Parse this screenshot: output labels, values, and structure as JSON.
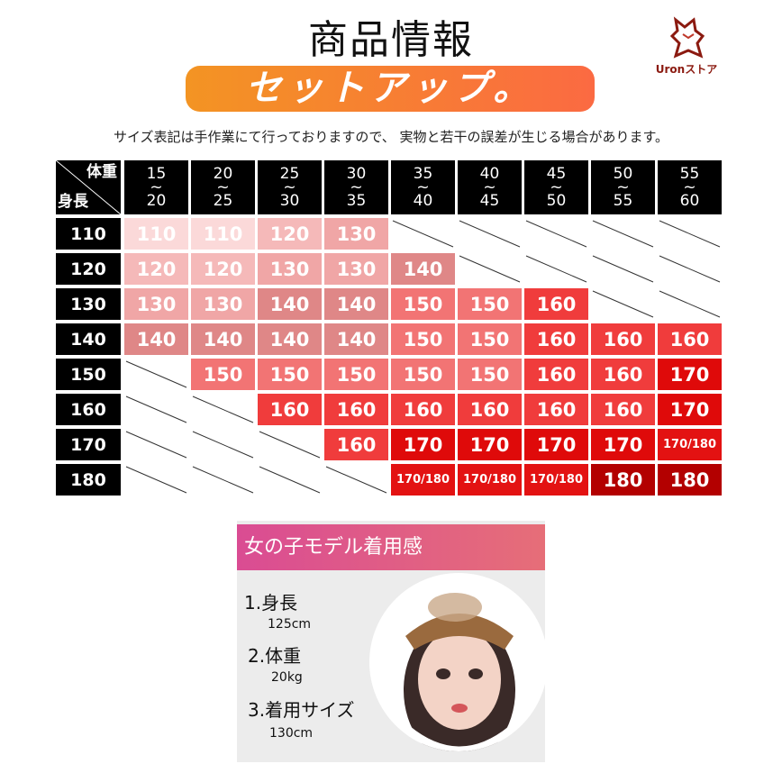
{
  "title": "商品情報",
  "banner": "セットアップ。",
  "logo_text": "Uronストア",
  "note": "サイズ表記は手作業にて行っておりますので、 実物と若干の誤差が生じる場合があります。",
  "table": {
    "corner_weight": "体重",
    "corner_height": "身長",
    "weight_cols": [
      [
        "15",
        "20"
      ],
      [
        "20",
        "25"
      ],
      [
        "25",
        "30"
      ],
      [
        "30",
        "35"
      ],
      [
        "35",
        "40"
      ],
      [
        "40",
        "45"
      ],
      [
        "45",
        "50"
      ],
      [
        "50",
        "55"
      ],
      [
        "55",
        "60"
      ]
    ],
    "range_sep": "~",
    "rows": [
      {
        "height": "110",
        "sizes": [
          "110",
          "110",
          "120",
          "130",
          null,
          null,
          null,
          null,
          null
        ]
      },
      {
        "height": "120",
        "sizes": [
          "120",
          "120",
          "130",
          "130",
          "140",
          null,
          null,
          null,
          null
        ]
      },
      {
        "height": "130",
        "sizes": [
          "130",
          "130",
          "140",
          "140",
          "150",
          "150",
          "160",
          null,
          null
        ]
      },
      {
        "height": "140",
        "sizes": [
          "140",
          "140",
          "140",
          "140",
          "150",
          "150",
          "160",
          "160",
          "160"
        ]
      },
      {
        "height": "150",
        "sizes": [
          null,
          "150",
          "150",
          "150",
          "150",
          "150",
          "160",
          "160",
          "170"
        ]
      },
      {
        "height": "160",
        "sizes": [
          null,
          null,
          "160",
          "160",
          "160",
          "160",
          "160",
          "160",
          "170"
        ]
      },
      {
        "height": "170",
        "sizes": [
          null,
          null,
          null,
          "160",
          "170",
          "170",
          "170",
          "170",
          "170/180"
        ]
      },
      {
        "height": "180",
        "sizes": [
          null,
          null,
          null,
          null,
          "170/180",
          "170/180",
          "170/180",
          "180",
          "180"
        ]
      }
    ],
    "colors": {
      "110": "#fbd9d9",
      "120": "#f5b9b9",
      "130": "#f0a6a6",
      "140": "#df8787",
      "150": "#f27474",
      "160": "#f03c3c",
      "170": "#df0a0a",
      "170/180": "#e31212",
      "180": "#b30000"
    }
  },
  "model": {
    "header": "女の子モデル着用感",
    "items": [
      {
        "label": "1.身長",
        "value": "125cm"
      },
      {
        "label": "2.体重",
        "value": "20kg"
      },
      {
        "label": "3.着用サイズ",
        "value": "130cm"
      }
    ]
  }
}
